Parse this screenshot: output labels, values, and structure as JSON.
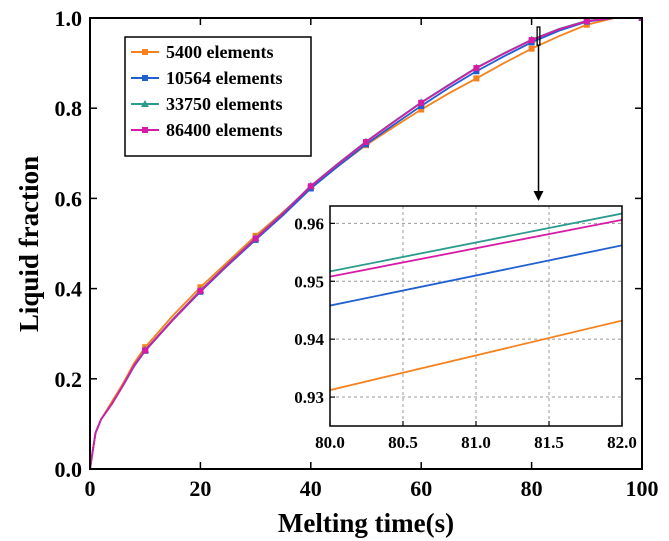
{
  "chart_data": {
    "type": "line",
    "xlabel": "Melting time(s)",
    "ylabel": "Liquid fraction",
    "xlim": [
      0,
      100
    ],
    "ylim": [
      0,
      1.0
    ],
    "x_ticks": [
      "0",
      "20",
      "40",
      "60",
      "80",
      "100"
    ],
    "y_ticks": [
      "0.0",
      "0.2",
      "0.4",
      "0.6",
      "0.8",
      "1.0"
    ],
    "legend_placement": "top-left",
    "series": [
      {
        "name": "5400 elements",
        "color": "#f5821f",
        "marker": "square",
        "x": [
          0,
          1,
          2,
          4,
          6,
          8,
          10,
          15,
          20,
          25,
          30,
          35,
          40,
          45,
          50,
          55,
          60,
          65,
          70,
          75,
          80,
          85,
          90,
          95,
          100
        ],
        "y": [
          0,
          0.08,
          0.11,
          0.15,
          0.19,
          0.235,
          0.27,
          0.34,
          0.403,
          0.46,
          0.517,
          0.57,
          0.625,
          0.672,
          0.718,
          0.758,
          0.797,
          0.833,
          0.866,
          0.9,
          0.932,
          0.96,
          0.985,
          1.0,
          1.0
        ]
      },
      {
        "name": "10564 elements",
        "color": "#1f5fd0",
        "marker": "square",
        "x": [
          0,
          1,
          2,
          4,
          6,
          8,
          10,
          15,
          20,
          25,
          30,
          35,
          40,
          45,
          50,
          55,
          60,
          65,
          70,
          75,
          80,
          85,
          90,
          95,
          100
        ],
        "y": [
          0,
          0.08,
          0.11,
          0.145,
          0.185,
          0.228,
          0.262,
          0.33,
          0.393,
          0.452,
          0.508,
          0.563,
          0.622,
          0.672,
          0.72,
          0.763,
          0.805,
          0.845,
          0.882,
          0.915,
          0.946,
          0.972,
          0.992,
          1.0,
          1.0
        ]
      },
      {
        "name": "33750 elements",
        "color": "#2a9b8c",
        "marker": "triangle",
        "x": [
          0,
          1,
          2,
          4,
          6,
          8,
          10,
          15,
          20,
          25,
          30,
          35,
          40,
          45,
          50,
          55,
          60,
          65,
          70,
          75,
          80,
          85,
          90,
          95,
          100
        ],
        "y": [
          0,
          0.08,
          0.11,
          0.145,
          0.186,
          0.23,
          0.264,
          0.332,
          0.396,
          0.455,
          0.512,
          0.568,
          0.628,
          0.678,
          0.726,
          0.77,
          0.813,
          0.852,
          0.89,
          0.922,
          0.952,
          0.976,
          0.994,
          1.0,
          1.0
        ]
      },
      {
        "name": "86400 elements",
        "color": "#d81ba6",
        "marker": "square",
        "x": [
          0,
          1,
          2,
          4,
          6,
          8,
          10,
          15,
          20,
          25,
          30,
          35,
          40,
          45,
          50,
          55,
          60,
          65,
          70,
          75,
          80,
          85,
          90,
          95,
          100
        ],
        "y": [
          0,
          0.08,
          0.11,
          0.145,
          0.186,
          0.23,
          0.263,
          0.331,
          0.395,
          0.454,
          0.511,
          0.567,
          0.627,
          0.677,
          0.725,
          0.769,
          0.812,
          0.851,
          0.889,
          0.921,
          0.951,
          0.975,
          0.993,
          1.0,
          1.0
        ]
      }
    ],
    "inset": {
      "xlim": [
        80.0,
        82.0
      ],
      "ylim": [
        0.925,
        0.963
      ],
      "x_ticks": [
        "80.0",
        "80.5",
        "81.0",
        "81.5",
        "82.0"
      ],
      "y_ticks": [
        "0.93",
        "0.94",
        "0.95",
        "0.96"
      ],
      "grid": true,
      "series": [
        {
          "name": "5400 elements",
          "x": [
            80.0,
            82.0
          ],
          "y": [
            0.9312,
            0.9432
          ]
        },
        {
          "name": "10564 elements",
          "x": [
            80.0,
            82.0
          ],
          "y": [
            0.9458,
            0.9562
          ]
        },
        {
          "name": "33750 elements",
          "x": [
            80.0,
            82.0
          ],
          "y": [
            0.9517,
            0.9617
          ]
        },
        {
          "name": "86400 elements",
          "x": [
            80.0,
            82.0
          ],
          "y": [
            0.9508,
            0.9606
          ]
        }
      ],
      "zoom_region": {
        "x": [
          81.0,
          81.5
        ],
        "y": [
          0.94,
          0.98
        ]
      }
    }
  }
}
